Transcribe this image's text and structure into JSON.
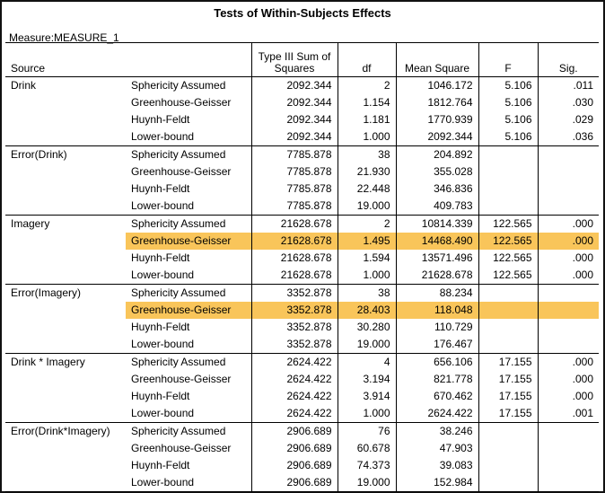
{
  "title": "Tests of Within-Subjects Effects",
  "measure": "Measure:MEASURE_1",
  "headers": {
    "source": "Source",
    "ss": "Type III Sum of Squares",
    "df": "df",
    "ms": "Mean Square",
    "f": "F",
    "sig": "Sig."
  },
  "highlight_color": "#f9c55a",
  "groups": [
    {
      "source": "Drink",
      "rows": [
        {
          "corr": "Sphericity Assumed",
          "ss": "2092.344",
          "df": "2",
          "ms": "1046.172",
          "f": "5.106",
          "sig": ".011",
          "hl": false
        },
        {
          "corr": "Greenhouse-Geisser",
          "ss": "2092.344",
          "df": "1.154",
          "ms": "1812.764",
          "f": "5.106",
          "sig": ".030",
          "hl": false
        },
        {
          "corr": "Huynh-Feldt",
          "ss": "2092.344",
          "df": "1.181",
          "ms": "1770.939",
          "f": "5.106",
          "sig": ".029",
          "hl": false
        },
        {
          "corr": "Lower-bound",
          "ss": "2092.344",
          "df": "1.000",
          "ms": "2092.344",
          "f": "5.106",
          "sig": ".036",
          "hl": false
        }
      ]
    },
    {
      "source": "Error(Drink)",
      "rows": [
        {
          "corr": "Sphericity Assumed",
          "ss": "7785.878",
          "df": "38",
          "ms": "204.892",
          "f": "",
          "sig": "",
          "hl": false
        },
        {
          "corr": "Greenhouse-Geisser",
          "ss": "7785.878",
          "df": "21.930",
          "ms": "355.028",
          "f": "",
          "sig": "",
          "hl": false
        },
        {
          "corr": "Huynh-Feldt",
          "ss": "7785.878",
          "df": "22.448",
          "ms": "346.836",
          "f": "",
          "sig": "",
          "hl": false
        },
        {
          "corr": "Lower-bound",
          "ss": "7785.878",
          "df": "19.000",
          "ms": "409.783",
          "f": "",
          "sig": "",
          "hl": false
        }
      ]
    },
    {
      "source": "Imagery",
      "rows": [
        {
          "corr": "Sphericity Assumed",
          "ss": "21628.678",
          "df": "2",
          "ms": "10814.339",
          "f": "122.565",
          "sig": ".000",
          "hl": false
        },
        {
          "corr": "Greenhouse-Geisser",
          "ss": "21628.678",
          "df": "1.495",
          "ms": "14468.490",
          "f": "122.565",
          "sig": ".000",
          "hl": true
        },
        {
          "corr": "Huynh-Feldt",
          "ss": "21628.678",
          "df": "1.594",
          "ms": "13571.496",
          "f": "122.565",
          "sig": ".000",
          "hl": false
        },
        {
          "corr": "Lower-bound",
          "ss": "21628.678",
          "df": "1.000",
          "ms": "21628.678",
          "f": "122.565",
          "sig": ".000",
          "hl": false
        }
      ]
    },
    {
      "source": "Error(Imagery)",
      "rows": [
        {
          "corr": "Sphericity Assumed",
          "ss": "3352.878",
          "df": "38",
          "ms": "88.234",
          "f": "",
          "sig": "",
          "hl": false
        },
        {
          "corr": "Greenhouse-Geisser",
          "ss": "3352.878",
          "df": "28.403",
          "ms": "118.048",
          "f": "",
          "sig": "",
          "hl": true
        },
        {
          "corr": "Huynh-Feldt",
          "ss": "3352.878",
          "df": "30.280",
          "ms": "110.729",
          "f": "",
          "sig": "",
          "hl": false
        },
        {
          "corr": "Lower-bound",
          "ss": "3352.878",
          "df": "19.000",
          "ms": "176.467",
          "f": "",
          "sig": "",
          "hl": false
        }
      ]
    },
    {
      "source": "Drink * Imagery",
      "rows": [
        {
          "corr": "Sphericity Assumed",
          "ss": "2624.422",
          "df": "4",
          "ms": "656.106",
          "f": "17.155",
          "sig": ".000",
          "hl": false
        },
        {
          "corr": "Greenhouse-Geisser",
          "ss": "2624.422",
          "df": "3.194",
          "ms": "821.778",
          "f": "17.155",
          "sig": ".000",
          "hl": false
        },
        {
          "corr": "Huynh-Feldt",
          "ss": "2624.422",
          "df": "3.914",
          "ms": "670.462",
          "f": "17.155",
          "sig": ".000",
          "hl": false
        },
        {
          "corr": "Lower-bound",
          "ss": "2624.422",
          "df": "1.000",
          "ms": "2624.422",
          "f": "17.155",
          "sig": ".001",
          "hl": false
        }
      ]
    },
    {
      "source": "Error(Drink*Imagery)",
      "rows": [
        {
          "corr": "Sphericity Assumed",
          "ss": "2906.689",
          "df": "76",
          "ms": "38.246",
          "f": "",
          "sig": "",
          "hl": false
        },
        {
          "corr": "Greenhouse-Geisser",
          "ss": "2906.689",
          "df": "60.678",
          "ms": "47.903",
          "f": "",
          "sig": "",
          "hl": false
        },
        {
          "corr": "Huynh-Feldt",
          "ss": "2906.689",
          "df": "74.373",
          "ms": "39.083",
          "f": "",
          "sig": "",
          "hl": false
        },
        {
          "corr": "Lower-bound",
          "ss": "2906.689",
          "df": "19.000",
          "ms": "152.984",
          "f": "",
          "sig": "",
          "hl": false
        }
      ]
    }
  ]
}
